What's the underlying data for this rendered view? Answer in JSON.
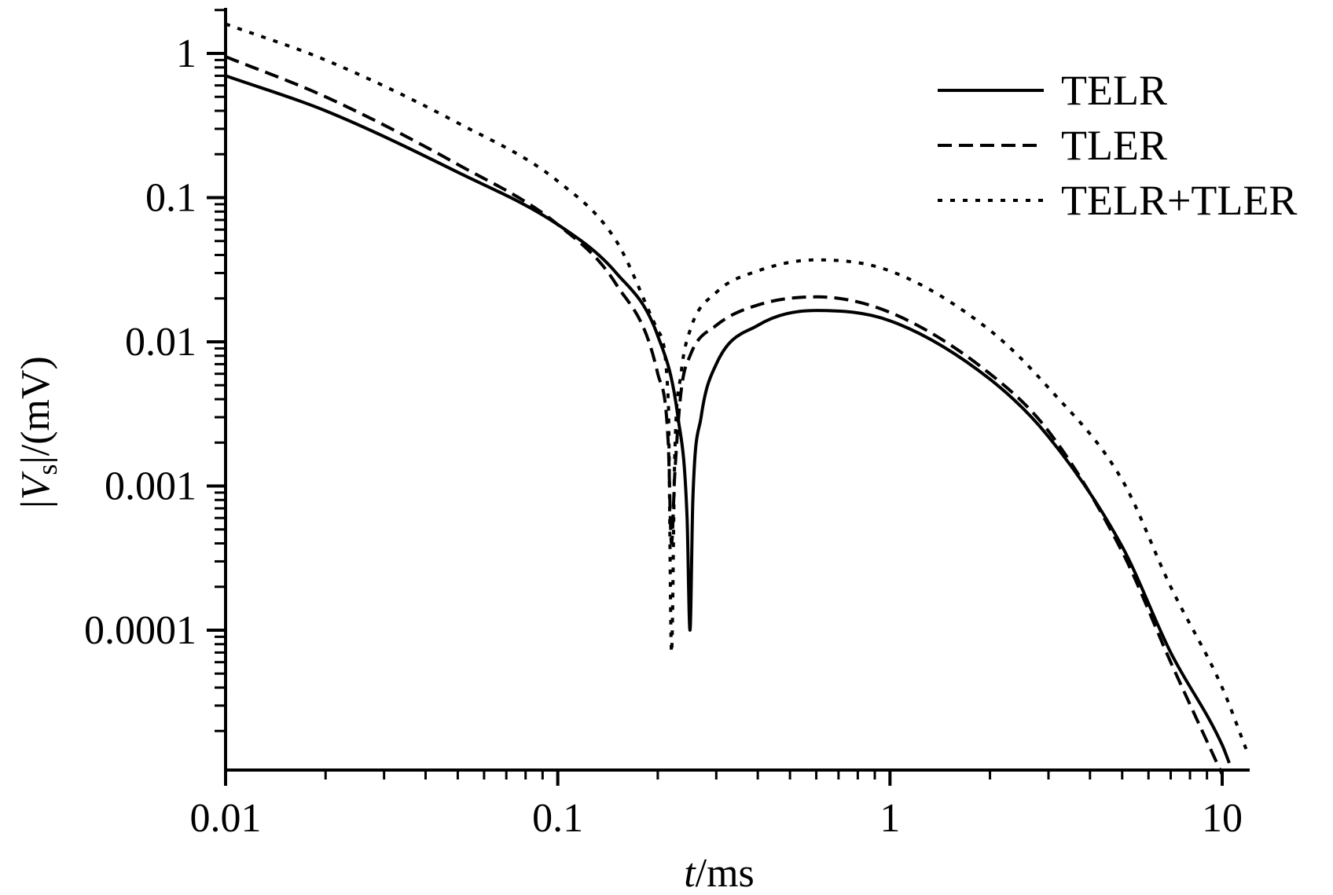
{
  "chart_data": {
    "type": "line",
    "title": "",
    "xscale": "log",
    "yscale": "log",
    "xlim": [
      0.01,
      12
    ],
    "ylim": [
      1e-05,
      2
    ],
    "grid": false,
    "legend_position": "top-right",
    "xlabel": {
      "var": "t",
      "unit": "/ms"
    },
    "ylabel": {
      "pre": "|",
      "var": "V",
      "sub": "s",
      "post": "|/(mV)"
    },
    "xticks": [
      {
        "value": 0.01,
        "label": "0.01"
      },
      {
        "value": 0.1,
        "label": "0.1"
      },
      {
        "value": 1,
        "label": "1"
      },
      {
        "value": 10,
        "label": "10"
      }
    ],
    "yticks": [
      {
        "value": 1,
        "label": "1"
      },
      {
        "value": 0.1,
        "label": "0.1"
      },
      {
        "value": 0.01,
        "label": "0.01"
      },
      {
        "value": 0.001,
        "label": "0.001"
      },
      {
        "value": 0.0001,
        "label": "0.0001"
      }
    ],
    "series": [
      {
        "name": "TELR",
        "style": "solid",
        "color": "#000000",
        "x": [
          0.01,
          0.02,
          0.05,
          0.1,
          0.15,
          0.2,
          0.23,
          0.245,
          0.25,
          0.255,
          0.27,
          0.3,
          0.4,
          0.6,
          1,
          2,
          3,
          5,
          7,
          10,
          10.5
        ],
        "y": [
          0.7,
          0.4,
          0.15,
          0.065,
          0.03,
          0.011,
          0.003,
          0.0006,
          0.0001,
          0.0008,
          0.003,
          0.007,
          0.013,
          0.0165,
          0.014,
          0.0055,
          0.0022,
          0.00038,
          7e-05,
          1.6e-05,
          1.2e-05
        ]
      },
      {
        "name": "TLER",
        "style": "dashed",
        "color": "#000000",
        "x": [
          0.01,
          0.02,
          0.05,
          0.1,
          0.15,
          0.2,
          0.215,
          0.22,
          0.225,
          0.235,
          0.25,
          0.3,
          0.4,
          0.6,
          1,
          2,
          3,
          5,
          7,
          10
        ],
        "y": [
          0.95,
          0.5,
          0.17,
          0.065,
          0.025,
          0.006,
          0.002,
          0.0004,
          0.0012,
          0.0045,
          0.008,
          0.013,
          0.018,
          0.0205,
          0.016,
          0.006,
          0.0024,
          0.00035,
          6e-05,
          1e-05
        ]
      },
      {
        "name": "TELR+TLER",
        "style": "dotted",
        "color": "#000000",
        "x": [
          0.01,
          0.02,
          0.05,
          0.1,
          0.15,
          0.2,
          0.215,
          0.22,
          0.225,
          0.235,
          0.25,
          0.3,
          0.4,
          0.6,
          1,
          2,
          3,
          5,
          7,
          10,
          11.8
        ],
        "y": [
          1.6,
          0.9,
          0.33,
          0.13,
          0.05,
          0.012,
          0.004,
          7e-05,
          0.0016,
          0.006,
          0.012,
          0.022,
          0.031,
          0.037,
          0.031,
          0.012,
          0.0048,
          0.0011,
          0.0002,
          4e-05,
          1.5e-05
        ]
      }
    ]
  }
}
